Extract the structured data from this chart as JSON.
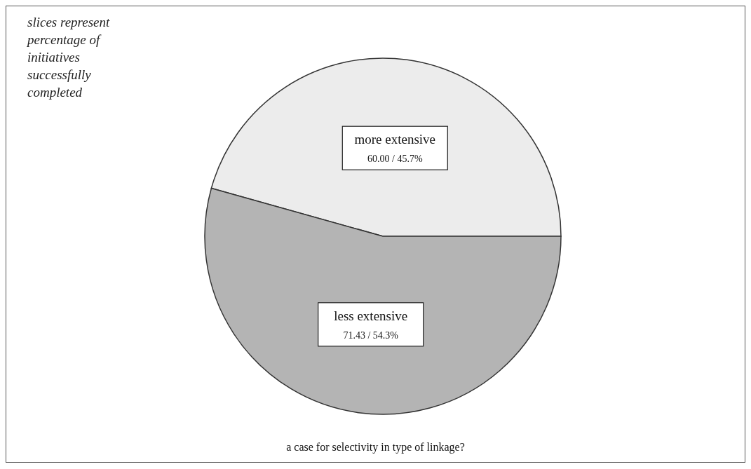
{
  "chart_data": {
    "type": "pie",
    "categories": [
      "more extensive",
      "less extensive"
    ],
    "values": [
      60.0,
      71.43
    ],
    "value_labels": [
      "60.00 / 45.7%",
      "71.43 / 54.3%"
    ],
    "colors": [
      "#ececec",
      "#b4b4b4"
    ],
    "legend": false,
    "annotations": [
      "slices represent percentage of initiatives successfully completed",
      "a case for selectivity in type of linkage?"
    ]
  }
}
